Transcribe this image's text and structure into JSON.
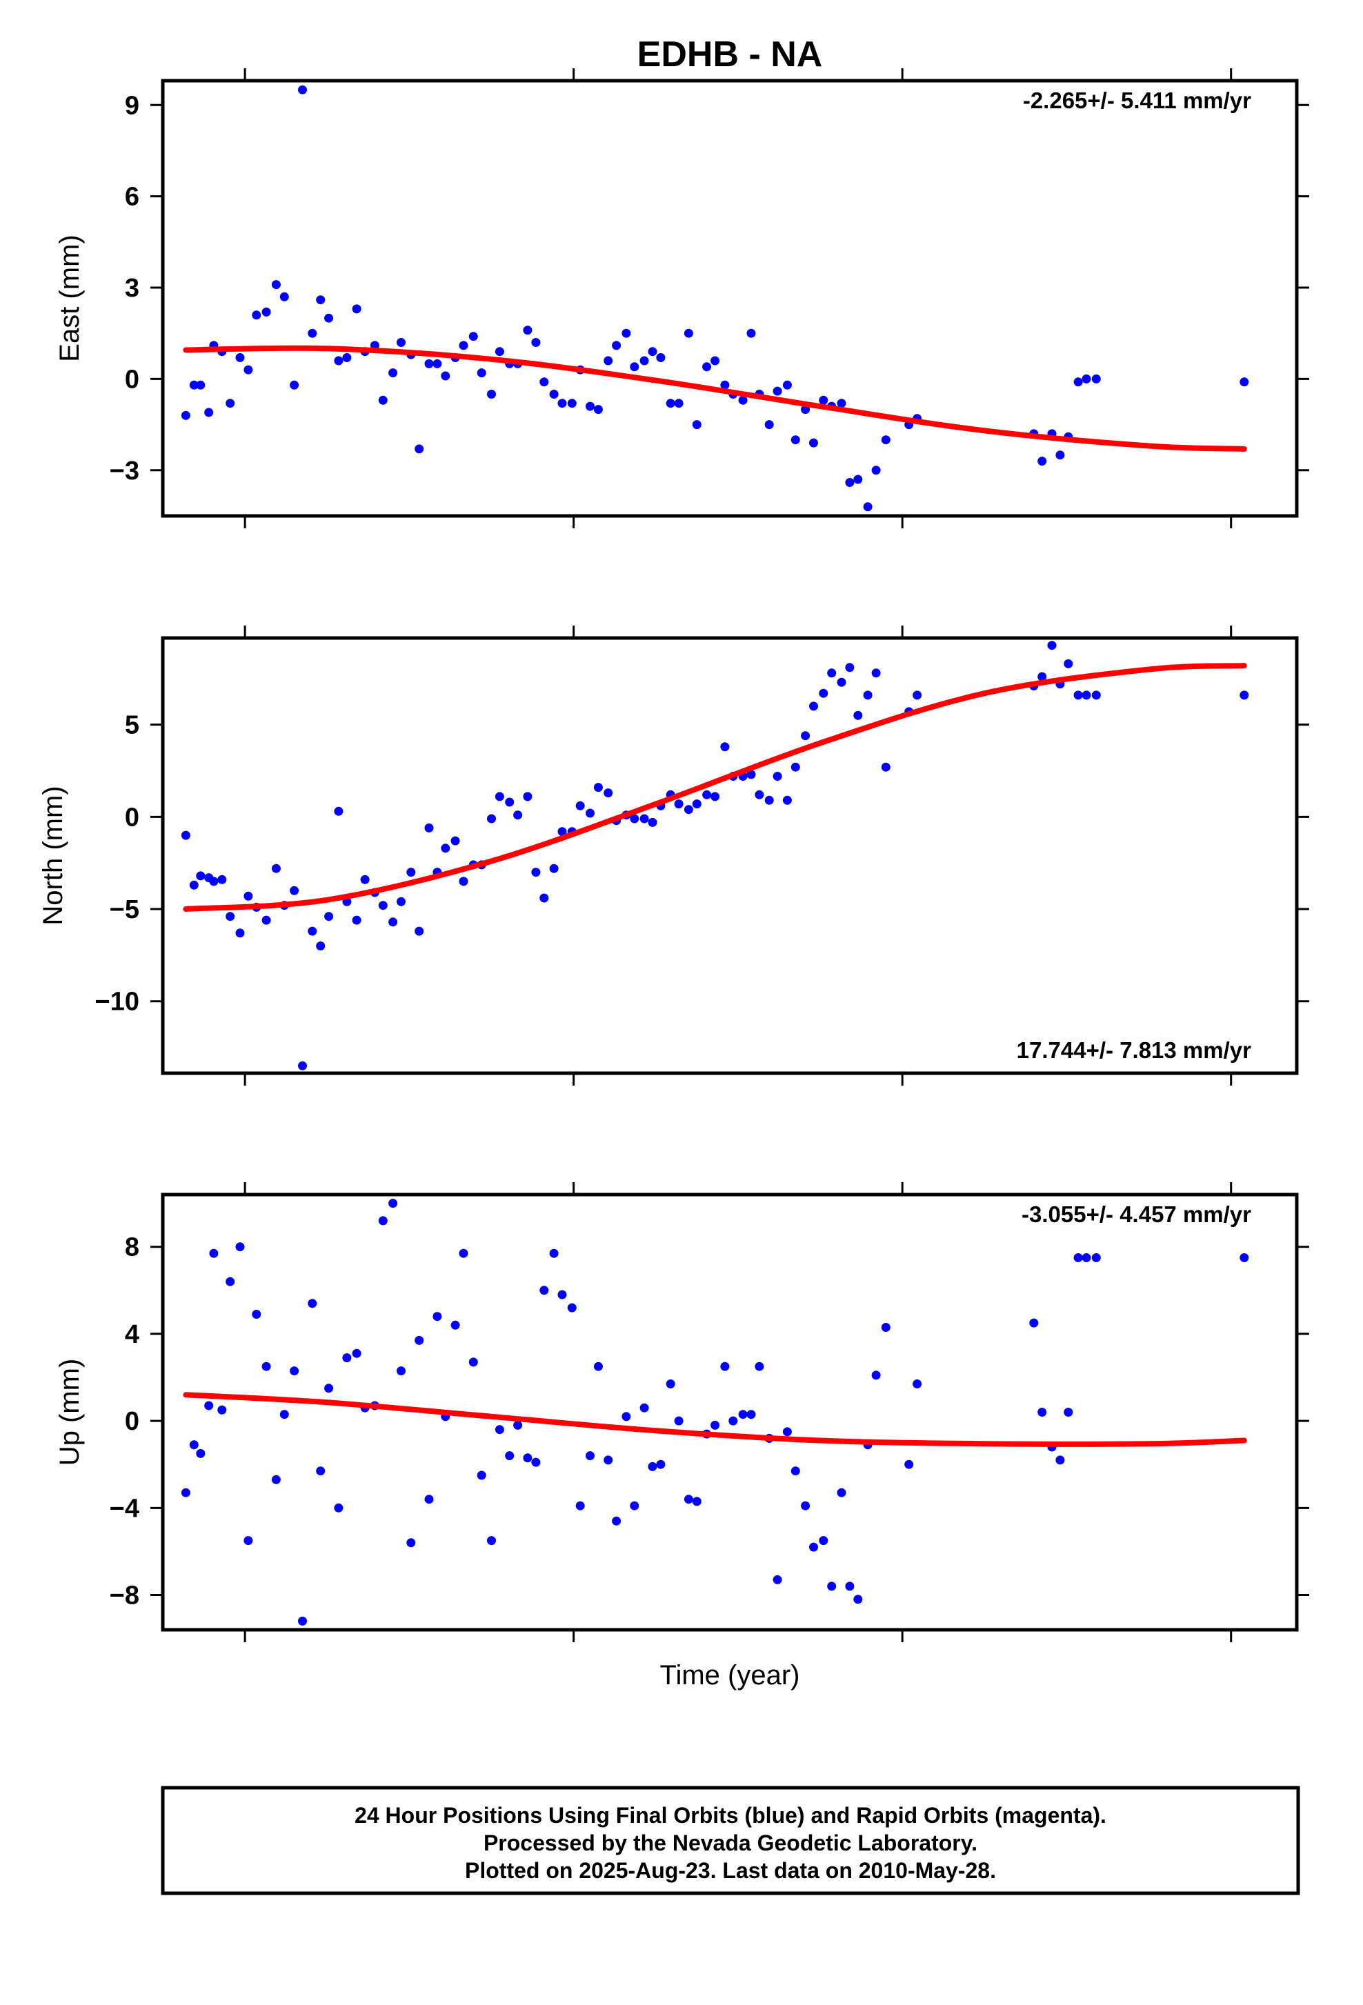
{
  "title": "EDHB - NA",
  "xlabel": "Time (year)",
  "footer": {
    "line1": "24 Hour Positions Using Final Orbits (blue) and Rapid Orbits (magenta).",
    "line2": "Processed by the Nevada Geodetic Laboratory.",
    "line3": "Plotted on 2025-Aug-23. Last data on 2010-May-28."
  },
  "colors": {
    "final_orbits": "#0000ff",
    "model_fit": "#ff0000",
    "frame": "#000000"
  },
  "chart_data": [
    {
      "type": "scatter",
      "component": "east",
      "ylabel": "East (mm)",
      "rate_text": "-2.265+/- 5.411 mm/yr",
      "rate_position": "top-right",
      "ylim": [
        -4.5,
        9.8
      ],
      "yticks": [
        -3,
        0,
        3,
        6,
        9
      ],
      "ytick_labels": [
        "−3",
        "0",
        "3",
        "6",
        "9"
      ],
      "xlim": [
        2009.45,
        2010.14
      ],
      "xticks": [
        2009.5,
        2009.7,
        2009.9,
        2010.1
      ],
      "grid": false,
      "x": [
        2009.464,
        2009.469,
        2009.473,
        2009.478,
        2009.481,
        2009.486,
        2009.491,
        2009.497,
        2009.502,
        2009.507,
        2009.513,
        2009.519,
        2009.524,
        2009.53,
        2009.535,
        2009.541,
        2009.546,
        2009.551,
        2009.557,
        2009.562,
        2009.568,
        2009.573,
        2009.579,
        2009.584,
        2009.59,
        2009.595,
        2009.601,
        2009.606,
        2009.612,
        2009.617,
        2009.622,
        2009.628,
        2009.633,
        2009.639,
        2009.644,
        2009.65,
        2009.655,
        2009.661,
        2009.666,
        2009.672,
        2009.677,
        2009.682,
        2009.688,
        2009.693,
        2009.699,
        2009.704,
        2009.71,
        2009.715,
        2009.721,
        2009.726,
        2009.732,
        2009.737,
        2009.743,
        2009.748,
        2009.753,
        2009.759,
        2009.764,
        2009.77,
        2009.775,
        2009.781,
        2009.786,
        2009.792,
        2009.797,
        2009.803,
        2009.808,
        2009.813,
        2009.819,
        2009.824,
        2009.83,
        2009.835,
        2009.841,
        2009.846,
        2009.852,
        2009.857,
        2009.863,
        2009.868,
        2009.873,
        2009.879,
        2009.884,
        2009.89,
        2009.904,
        2009.909,
        2009.98,
        2009.985,
        2009.991,
        2009.996,
        2010.001,
        2010.007,
        2010.012,
        2010.018,
        2010.108
      ],
      "y": [
        -1.2,
        -0.2,
        -0.2,
        -1.1,
        1.1,
        0.9,
        -0.8,
        0.7,
        0.3,
        2.1,
        2.2,
        3.1,
        2.7,
        -0.2,
        9.5,
        1.5,
        2.6,
        2.0,
        0.6,
        0.7,
        2.3,
        0.9,
        1.1,
        -0.7,
        0.2,
        1.2,
        0.8,
        -2.3,
        0.5,
        0.5,
        0.1,
        0.7,
        1.1,
        1.4,
        0.2,
        -0.5,
        0.9,
        0.5,
        0.5,
        1.6,
        1.2,
        -0.1,
        -0.5,
        -0.8,
        -0.8,
        0.3,
        -0.9,
        -1.0,
        0.6,
        1.1,
        1.5,
        0.4,
        0.6,
        0.9,
        0.7,
        -0.8,
        -0.8,
        1.5,
        -1.5,
        0.4,
        0.6,
        -0.2,
        -0.5,
        -0.7,
        1.5,
        -0.5,
        -1.5,
        -0.4,
        -0.2,
        -2.0,
        -1.0,
        -2.1,
        -0.7,
        -0.9,
        -0.8,
        -3.4,
        -3.3,
        -4.2,
        -3.0,
        -2.0,
        -1.5,
        -1.3,
        -1.8,
        -2.7,
        -1.8,
        -2.5,
        -1.9,
        -0.1,
        0.0,
        0.0,
        -0.1
      ],
      "fit": {
        "x": [
          2009.464,
          2009.55,
          2009.65,
          2009.75,
          2009.85,
          2009.95,
          2010.05,
          2010.108
        ],
        "y": [
          0.95,
          1.0,
          0.65,
          -0.05,
          -0.9,
          -1.7,
          -2.2,
          -2.3
        ]
      }
    },
    {
      "type": "scatter",
      "component": "north",
      "ylabel": "North (mm)",
      "rate_text": "17.744+/- 7.813 mm/yr",
      "rate_position": "bottom-right",
      "ylim": [
        -13.9,
        9.7
      ],
      "yticks": [
        -10,
        -5,
        0,
        5
      ],
      "ytick_labels": [
        "−10",
        "−5",
        "0",
        "5"
      ],
      "xlim": [
        2009.45,
        2010.14
      ],
      "xticks": [
        2009.5,
        2009.7,
        2009.9,
        2010.1
      ],
      "grid": false,
      "x": [
        2009.464,
        2009.469,
        2009.473,
        2009.478,
        2009.481,
        2009.486,
        2009.491,
        2009.497,
        2009.502,
        2009.507,
        2009.513,
        2009.519,
        2009.524,
        2009.53,
        2009.535,
        2009.541,
        2009.546,
        2009.551,
        2009.557,
        2009.562,
        2009.568,
        2009.573,
        2009.579,
        2009.584,
        2009.59,
        2009.595,
        2009.601,
        2009.606,
        2009.612,
        2009.617,
        2009.622,
        2009.628,
        2009.633,
        2009.639,
        2009.644,
        2009.65,
        2009.655,
        2009.661,
        2009.666,
        2009.672,
        2009.677,
        2009.682,
        2009.688,
        2009.693,
        2009.699,
        2009.704,
        2009.71,
        2009.715,
        2009.721,
        2009.726,
        2009.732,
        2009.737,
        2009.743,
        2009.748,
        2009.753,
        2009.759,
        2009.764,
        2009.77,
        2009.775,
        2009.781,
        2009.786,
        2009.792,
        2009.797,
        2009.803,
        2009.808,
        2009.813,
        2009.819,
        2009.824,
        2009.83,
        2009.835,
        2009.841,
        2009.846,
        2009.852,
        2009.857,
        2009.863,
        2009.868,
        2009.873,
        2009.879,
        2009.884,
        2009.89,
        2009.904,
        2009.909,
        2009.98,
        2009.985,
        2009.991,
        2009.996,
        2010.001,
        2010.007,
        2010.012,
        2010.018,
        2010.108
      ],
      "y": [
        -1.0,
        -3.7,
        -3.2,
        -3.3,
        -3.5,
        -3.4,
        -5.4,
        -6.3,
        -4.3,
        -4.9,
        -5.6,
        -2.8,
        -4.8,
        -4.0,
        -13.5,
        -6.2,
        -7.0,
        -5.4,
        0.3,
        -4.6,
        -5.6,
        -3.4,
        -4.1,
        -4.8,
        -5.7,
        -4.6,
        -3.0,
        -6.2,
        -0.6,
        -3.0,
        -1.7,
        -1.3,
        -3.5,
        -2.6,
        -2.6,
        -0.1,
        1.1,
        0.8,
        0.1,
        1.1,
        -3.0,
        -4.4,
        -2.8,
        -0.8,
        -0.8,
        0.6,
        0.2,
        1.6,
        1.3,
        -0.2,
        0.1,
        -0.1,
        -0.1,
        -0.3,
        0.6,
        1.2,
        0.7,
        0.4,
        0.7,
        1.2,
        1.1,
        3.8,
        2.2,
        2.2,
        2.3,
        1.2,
        0.9,
        2.2,
        0.9,
        2.7,
        4.4,
        6.0,
        6.7,
        7.8,
        7.3,
        8.1,
        5.5,
        6.6,
        7.8,
        2.7,
        5.7,
        6.6,
        7.1,
        7.6,
        9.3,
        7.2,
        8.3,
        6.6,
        6.6,
        6.6,
        6.6
      ],
      "fit": {
        "x": [
          2009.464,
          2009.55,
          2009.65,
          2009.75,
          2009.85,
          2009.95,
          2010.05,
          2010.108
        ],
        "y": [
          -5.0,
          -4.5,
          -2.4,
          0.7,
          4.0,
          6.7,
          8.0,
          8.2
        ]
      }
    },
    {
      "type": "scatter",
      "component": "up",
      "ylabel": "Up (mm)",
      "rate_text": "-3.055+/- 4.457 mm/yr",
      "rate_position": "top-right",
      "ylim": [
        -9.6,
        10.4
      ],
      "yticks": [
        -8,
        -4,
        0,
        4,
        8
      ],
      "ytick_labels": [
        "−8",
        "−4",
        "0",
        "4",
        "8"
      ],
      "xlim": [
        2009.45,
        2010.14
      ],
      "xticks": [
        2009.5,
        2009.7,
        2009.9,
        2010.1
      ],
      "grid": false,
      "x": [
        2009.464,
        2009.469,
        2009.473,
        2009.478,
        2009.481,
        2009.486,
        2009.491,
        2009.497,
        2009.502,
        2009.507,
        2009.513,
        2009.519,
        2009.524,
        2009.53,
        2009.535,
        2009.541,
        2009.546,
        2009.551,
        2009.557,
        2009.562,
        2009.568,
        2009.573,
        2009.579,
        2009.584,
        2009.59,
        2009.595,
        2009.601,
        2009.606,
        2009.612,
        2009.617,
        2009.622,
        2009.628,
        2009.633,
        2009.639,
        2009.644,
        2009.65,
        2009.655,
        2009.661,
        2009.666,
        2009.672,
        2009.677,
        2009.682,
        2009.688,
        2009.693,
        2009.699,
        2009.704,
        2009.71,
        2009.715,
        2009.721,
        2009.726,
        2009.732,
        2009.737,
        2009.743,
        2009.748,
        2009.753,
        2009.759,
        2009.764,
        2009.77,
        2009.775,
        2009.781,
        2009.786,
        2009.792,
        2009.797,
        2009.803,
        2009.808,
        2009.813,
        2009.819,
        2009.824,
        2009.83,
        2009.835,
        2009.841,
        2009.846,
        2009.852,
        2009.857,
        2009.863,
        2009.868,
        2009.873,
        2009.879,
        2009.884,
        2009.89,
        2009.904,
        2009.909,
        2009.98,
        2009.985,
        2009.991,
        2009.996,
        2010.001,
        2010.007,
        2010.012,
        2010.018,
        2010.108
      ],
      "y": [
        -3.3,
        -1.1,
        -1.5,
        0.7,
        7.7,
        0.5,
        6.4,
        8.0,
        -5.5,
        4.9,
        2.5,
        -2.7,
        0.3,
        2.3,
        -9.2,
        5.4,
        -2.3,
        1.5,
        -4.0,
        2.9,
        3.1,
        0.6,
        0.7,
        9.2,
        10.0,
        2.3,
        -5.6,
        3.7,
        -3.6,
        4.8,
        0.2,
        4.4,
        7.7,
        2.7,
        -2.5,
        -5.5,
        -0.4,
        -1.6,
        -0.2,
        -1.7,
        -1.9,
        6.0,
        7.7,
        5.8,
        5.2,
        -3.9,
        -1.6,
        2.5,
        -1.8,
        -4.6,
        0.2,
        -3.9,
        0.6,
        -2.1,
        -2.0,
        1.7,
        0.0,
        -3.6,
        -3.7,
        -0.6,
        -0.2,
        2.5,
        0.0,
        0.3,
        0.3,
        2.5,
        -0.8,
        -7.3,
        -0.5,
        -2.3,
        -3.9,
        -5.8,
        -5.5,
        -7.6,
        -3.3,
        -7.6,
        -8.2,
        -1.1,
        2.1,
        4.3,
        -2.0,
        1.7,
        4.5,
        0.4,
        -1.2,
        -1.8,
        0.4,
        7.5,
        7.5,
        7.5,
        7.5
      ],
      "fit": {
        "x": [
          2009.464,
          2009.55,
          2009.65,
          2009.75,
          2009.85,
          2009.95,
          2010.05,
          2010.108
        ],
        "y": [
          1.2,
          0.85,
          0.2,
          -0.45,
          -0.9,
          -1.05,
          -1.05,
          -0.9
        ]
      }
    }
  ]
}
